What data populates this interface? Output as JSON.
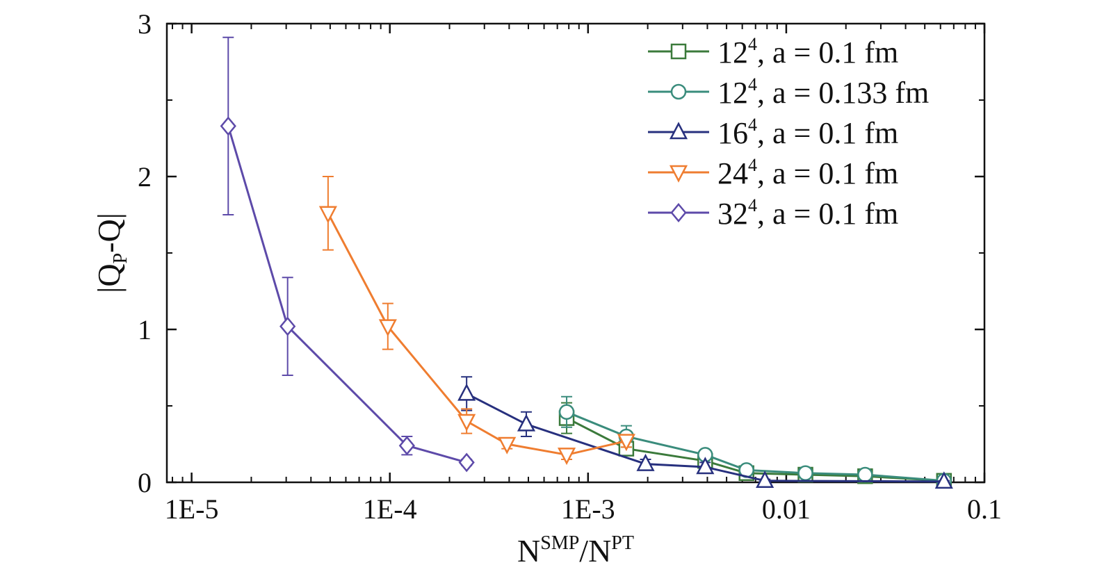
{
  "chart_data": {
    "type": "line",
    "xscale": "log",
    "xlim": [
      7.5e-06,
      0.1
    ],
    "ylim": [
      0,
      3
    ],
    "xlabel": {
      "main": "N",
      "sup1": "SMP",
      "mid": "/N",
      "sup2": "PT"
    },
    "ylabel": {
      "pre": "|Q",
      "sub": "P",
      "post": "-Q|"
    },
    "xticks": [
      {
        "value": 1e-05,
        "label": "1E-5"
      },
      {
        "value": 0.0001,
        "label": "1E-4"
      },
      {
        "value": 0.001,
        "label": "1E-3"
      },
      {
        "value": 0.01,
        "label": "0.01"
      },
      {
        "value": 0.1,
        "label": "0.1"
      }
    ],
    "yticks": [
      {
        "value": 0,
        "label": "0"
      },
      {
        "value": 1,
        "label": "1"
      },
      {
        "value": 2,
        "label": "2"
      },
      {
        "value": 3,
        "label": "3"
      }
    ],
    "yminor": [
      0.5,
      1.5,
      2.5
    ],
    "legend_position": "top-right",
    "series": [
      {
        "name": "12^4, a = 0.1 fm",
        "legend": {
          "base": "12",
          "sup": "4",
          "rest": ", a = 0.1 fm"
        },
        "color": "#3b7a3b",
        "marker": "square",
        "x": [
          0.00078,
          0.00156,
          0.0039,
          0.0063,
          0.0125,
          0.025,
          0.0625
        ],
        "y": [
          0.42,
          0.22,
          0.14,
          0.06,
          0.05,
          0.04,
          0.01
        ],
        "err": [
          0.1,
          0.04,
          0.02,
          0.01,
          0.01,
          0.01,
          0.005
        ]
      },
      {
        "name": "12^4, a = 0.133 fm",
        "legend": {
          "base": "12",
          "sup": "4",
          "rest": ", a = 0.133 fm"
        },
        "color": "#3a8c7c",
        "marker": "circle",
        "x": [
          0.00078,
          0.00156,
          0.0039,
          0.0063,
          0.0125,
          0.025,
          0.0625
        ],
        "y": [
          0.46,
          0.3,
          0.18,
          0.08,
          0.06,
          0.05,
          0.01
        ],
        "err": [
          0.1,
          0.07,
          0.03,
          0.02,
          0.02,
          0.02,
          0.005
        ]
      },
      {
        "name": "16^4, a = 0.1 fm",
        "legend": {
          "base": "16",
          "sup": "4",
          "rest": ", a = 0.1 fm"
        },
        "color": "#27307e",
        "marker": "triangle-up",
        "x": [
          0.000244,
          0.000488,
          0.00195,
          0.0039,
          0.0078,
          0.0625
        ],
        "y": [
          0.58,
          0.38,
          0.12,
          0.1,
          0.01,
          0.005
        ],
        "err": [
          0.11,
          0.08,
          0.03,
          0.03,
          0.01,
          0.005
        ]
      },
      {
        "name": "24^4, a = 0.1 fm",
        "legend": {
          "base": "24",
          "sup": "4",
          "rest": ", a = 0.1 fm"
        },
        "color": "#ef7d30",
        "marker": "triangle-down",
        "x": [
          4.88e-05,
          9.77e-05,
          0.000244,
          0.00039,
          0.00078,
          0.00156
        ],
        "y": [
          1.76,
          1.02,
          0.4,
          0.25,
          0.18,
          0.27
        ],
        "err": [
          0.24,
          0.15,
          0.08,
          0.03,
          0.03,
          0.04
        ]
      },
      {
        "name": "32^4, a = 0.1 fm",
        "legend": {
          "base": "32",
          "sup": "4",
          "rest": ", a = 0.1 fm"
        },
        "color": "#5d4aa9",
        "marker": "diamond",
        "x": [
          1.53e-05,
          3.05e-05,
          0.000122,
          0.000244
        ],
        "y": [
          2.33,
          1.02,
          0.24,
          0.13
        ],
        "err": [
          0.58,
          0.32,
          0.06,
          0.02
        ]
      }
    ]
  }
}
